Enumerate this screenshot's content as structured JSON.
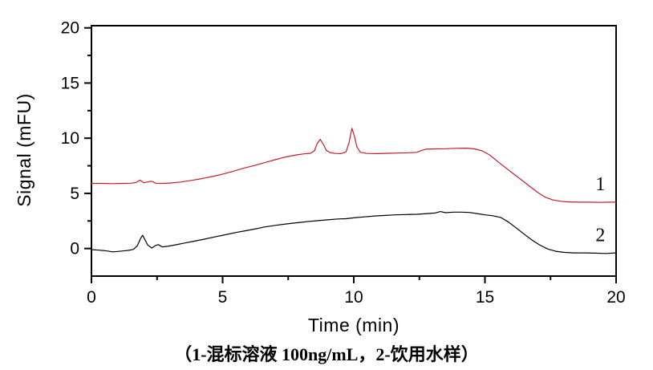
{
  "figure": {
    "caption": "（1-混标溶液 100ng/mL，2-饮用水样）",
    "background": "#ffffff",
    "axis_color": "#000000"
  },
  "chart_data": {
    "type": "line",
    "title": "",
    "xlabel": "Time (min)",
    "ylabel": "Signal (mFU)",
    "xlim": [
      0,
      20
    ],
    "ylim": [
      -2.5,
      20.2
    ],
    "xticks": [
      0,
      5,
      10,
      15,
      20
    ],
    "yticks": [
      0,
      5,
      10,
      15,
      20
    ],
    "x_minor_step": 2.5,
    "y_minor_step": 2.5,
    "grid": false,
    "legend_position": "none",
    "frame": true,
    "annotations": [
      {
        "text": "1",
        "x": 19.4,
        "y": 5.85
      },
      {
        "text": "2",
        "x": 19.4,
        "y": 1.25
      }
    ],
    "series": [
      {
        "name": "1",
        "label": "混标溶液 100ng/mL",
        "color": "#c01e28",
        "points": [
          [
            0,
            5.9
          ],
          [
            0.4,
            5.9
          ],
          [
            0.8,
            5.88
          ],
          [
            1.2,
            5.9
          ],
          [
            1.5,
            5.92
          ],
          [
            1.7,
            5.98
          ],
          [
            1.85,
            6.2
          ],
          [
            2.0,
            5.96
          ],
          [
            2.15,
            6.04
          ],
          [
            2.3,
            6.1
          ],
          [
            2.45,
            5.92
          ],
          [
            2.7,
            5.9
          ],
          [
            3.0,
            5.93
          ],
          [
            3.4,
            6.03
          ],
          [
            3.8,
            6.17
          ],
          [
            4.2,
            6.33
          ],
          [
            4.6,
            6.52
          ],
          [
            5.0,
            6.75
          ],
          [
            5.4,
            7.0
          ],
          [
            5.8,
            7.28
          ],
          [
            6.2,
            7.52
          ],
          [
            6.6,
            7.78
          ],
          [
            7.0,
            8.05
          ],
          [
            7.4,
            8.3
          ],
          [
            7.8,
            8.48
          ],
          [
            8.1,
            8.58
          ],
          [
            8.35,
            8.63
          ],
          [
            8.5,
            8.85
          ],
          [
            8.6,
            9.5
          ],
          [
            8.72,
            9.9
          ],
          [
            8.85,
            9.4
          ],
          [
            8.95,
            8.9
          ],
          [
            9.1,
            8.7
          ],
          [
            9.3,
            8.62
          ],
          [
            9.5,
            8.6
          ],
          [
            9.7,
            8.75
          ],
          [
            9.82,
            9.6
          ],
          [
            9.93,
            10.9
          ],
          [
            10.02,
            10.2
          ],
          [
            10.12,
            9.2
          ],
          [
            10.25,
            8.72
          ],
          [
            10.5,
            8.62
          ],
          [
            10.9,
            8.6
          ],
          [
            11.3,
            8.63
          ],
          [
            11.7,
            8.65
          ],
          [
            12.1,
            8.68
          ],
          [
            12.4,
            8.72
          ],
          [
            12.6,
            8.9
          ],
          [
            12.75,
            9.0
          ],
          [
            13.1,
            9.03
          ],
          [
            13.5,
            9.05
          ],
          [
            13.9,
            9.08
          ],
          [
            14.3,
            9.1
          ],
          [
            14.6,
            9.03
          ],
          [
            14.9,
            8.85
          ],
          [
            15.2,
            8.45
          ],
          [
            15.5,
            7.85
          ],
          [
            15.8,
            7.3
          ],
          [
            16.1,
            6.75
          ],
          [
            16.4,
            6.2
          ],
          [
            16.7,
            5.65
          ],
          [
            17.0,
            5.1
          ],
          [
            17.3,
            4.65
          ],
          [
            17.6,
            4.4
          ],
          [
            17.9,
            4.28
          ],
          [
            18.2,
            4.22
          ],
          [
            18.6,
            4.2
          ],
          [
            19.0,
            4.2
          ],
          [
            19.4,
            4.18
          ],
          [
            19.7,
            4.2
          ],
          [
            20,
            4.2
          ]
        ]
      },
      {
        "name": "2",
        "label": "饮用水样",
        "color": "#000000",
        "points": [
          [
            0,
            -0.1
          ],
          [
            0.3,
            -0.15
          ],
          [
            0.6,
            -0.22
          ],
          [
            0.8,
            -0.3
          ],
          [
            1.0,
            -0.27
          ],
          [
            1.2,
            -0.22
          ],
          [
            1.4,
            -0.17
          ],
          [
            1.6,
            -0.08
          ],
          [
            1.75,
            0.25
          ],
          [
            1.87,
            0.9
          ],
          [
            1.95,
            1.2
          ],
          [
            2.05,
            0.75
          ],
          [
            2.15,
            0.3
          ],
          [
            2.3,
            0.05
          ],
          [
            2.45,
            0.28
          ],
          [
            2.55,
            0.35
          ],
          [
            2.7,
            0.15
          ],
          [
            2.9,
            0.2
          ],
          [
            3.2,
            0.33
          ],
          [
            3.55,
            0.5
          ],
          [
            3.9,
            0.66
          ],
          [
            4.3,
            0.85
          ],
          [
            4.7,
            1.05
          ],
          [
            5.1,
            1.25
          ],
          [
            5.5,
            1.45
          ],
          [
            5.9,
            1.62
          ],
          [
            6.3,
            1.8
          ],
          [
            6.6,
            1.95
          ],
          [
            7.0,
            2.1
          ],
          [
            7.4,
            2.22
          ],
          [
            7.8,
            2.33
          ],
          [
            8.2,
            2.43
          ],
          [
            8.6,
            2.52
          ],
          [
            9.0,
            2.6
          ],
          [
            9.4,
            2.68
          ],
          [
            9.7,
            2.7
          ],
          [
            10.0,
            2.78
          ],
          [
            10.4,
            2.87
          ],
          [
            10.8,
            2.95
          ],
          [
            11.2,
            3.0
          ],
          [
            11.6,
            3.05
          ],
          [
            12.0,
            3.08
          ],
          [
            12.4,
            3.1
          ],
          [
            12.8,
            3.17
          ],
          [
            13.1,
            3.22
          ],
          [
            13.3,
            3.35
          ],
          [
            13.5,
            3.25
          ],
          [
            13.8,
            3.3
          ],
          [
            14.1,
            3.3
          ],
          [
            14.4,
            3.27
          ],
          [
            14.7,
            3.17
          ],
          [
            15.0,
            3.05
          ],
          [
            15.3,
            2.97
          ],
          [
            15.6,
            2.82
          ],
          [
            15.9,
            2.4
          ],
          [
            16.2,
            1.85
          ],
          [
            16.5,
            1.3
          ],
          [
            16.8,
            0.75
          ],
          [
            17.1,
            0.3
          ],
          [
            17.4,
            -0.05
          ],
          [
            17.7,
            -0.25
          ],
          [
            18.0,
            -0.35
          ],
          [
            18.4,
            -0.4
          ],
          [
            18.8,
            -0.4
          ],
          [
            19.2,
            -0.42
          ],
          [
            19.6,
            -0.45
          ],
          [
            20,
            -0.4
          ]
        ]
      }
    ]
  }
}
